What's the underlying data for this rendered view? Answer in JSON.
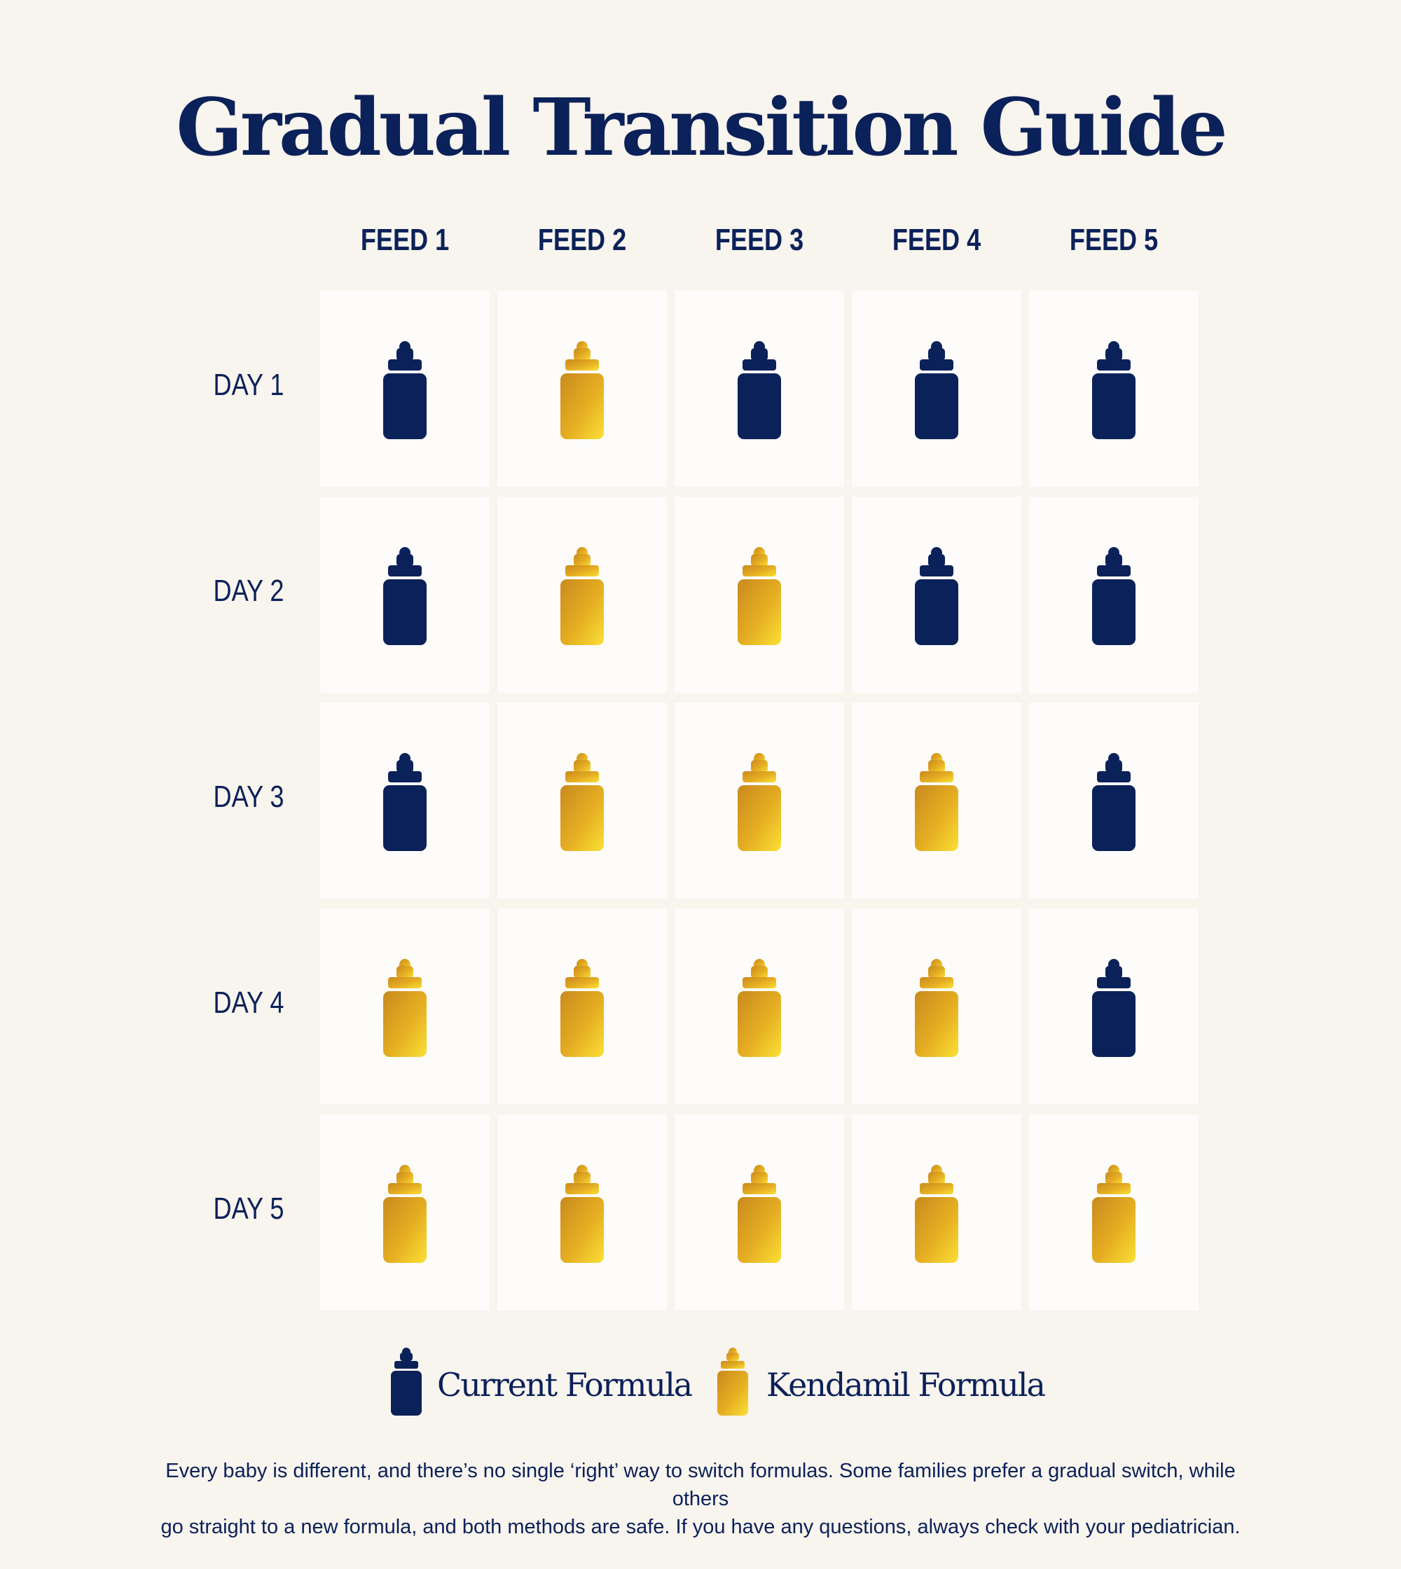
{
  "title": "Gradual Transition Guide",
  "feeds": [
    "FEED 1",
    "FEED 2",
    "FEED 3",
    "FEED 4",
    "FEED 5"
  ],
  "days": [
    {
      "label": "DAY 1",
      "bottles": [
        "current",
        "kendamil",
        "current",
        "current",
        "current"
      ]
    },
    {
      "label": "DAY 2",
      "bottles": [
        "current",
        "kendamil",
        "kendamil",
        "current",
        "current"
      ]
    },
    {
      "label": "DAY 3",
      "bottles": [
        "current",
        "kendamil",
        "kendamil",
        "kendamil",
        "current"
      ]
    },
    {
      "label": "DAY 4",
      "bottles": [
        "kendamil",
        "kendamil",
        "kendamil",
        "kendamil",
        "current"
      ]
    },
    {
      "label": "DAY 5",
      "bottles": [
        "kendamil",
        "kendamil",
        "kendamil",
        "kendamil",
        "kendamil"
      ]
    }
  ],
  "legend": {
    "current": {
      "label": "Current Formula",
      "icon": "baby-bottle-icon",
      "color": "#0b2159"
    },
    "kendamil": {
      "label": "Kendamil Formula",
      "icon": "baby-bottle-icon",
      "color": "#e0a820"
    }
  },
  "footnote": {
    "line1": "Every baby is different, and there’s no single ‘right’ way to switch formulas. Some families prefer a gradual switch, while others",
    "line2": "go straight to a new formula, and both methods are safe. If you have any questions, always check with your pediatrician."
  }
}
